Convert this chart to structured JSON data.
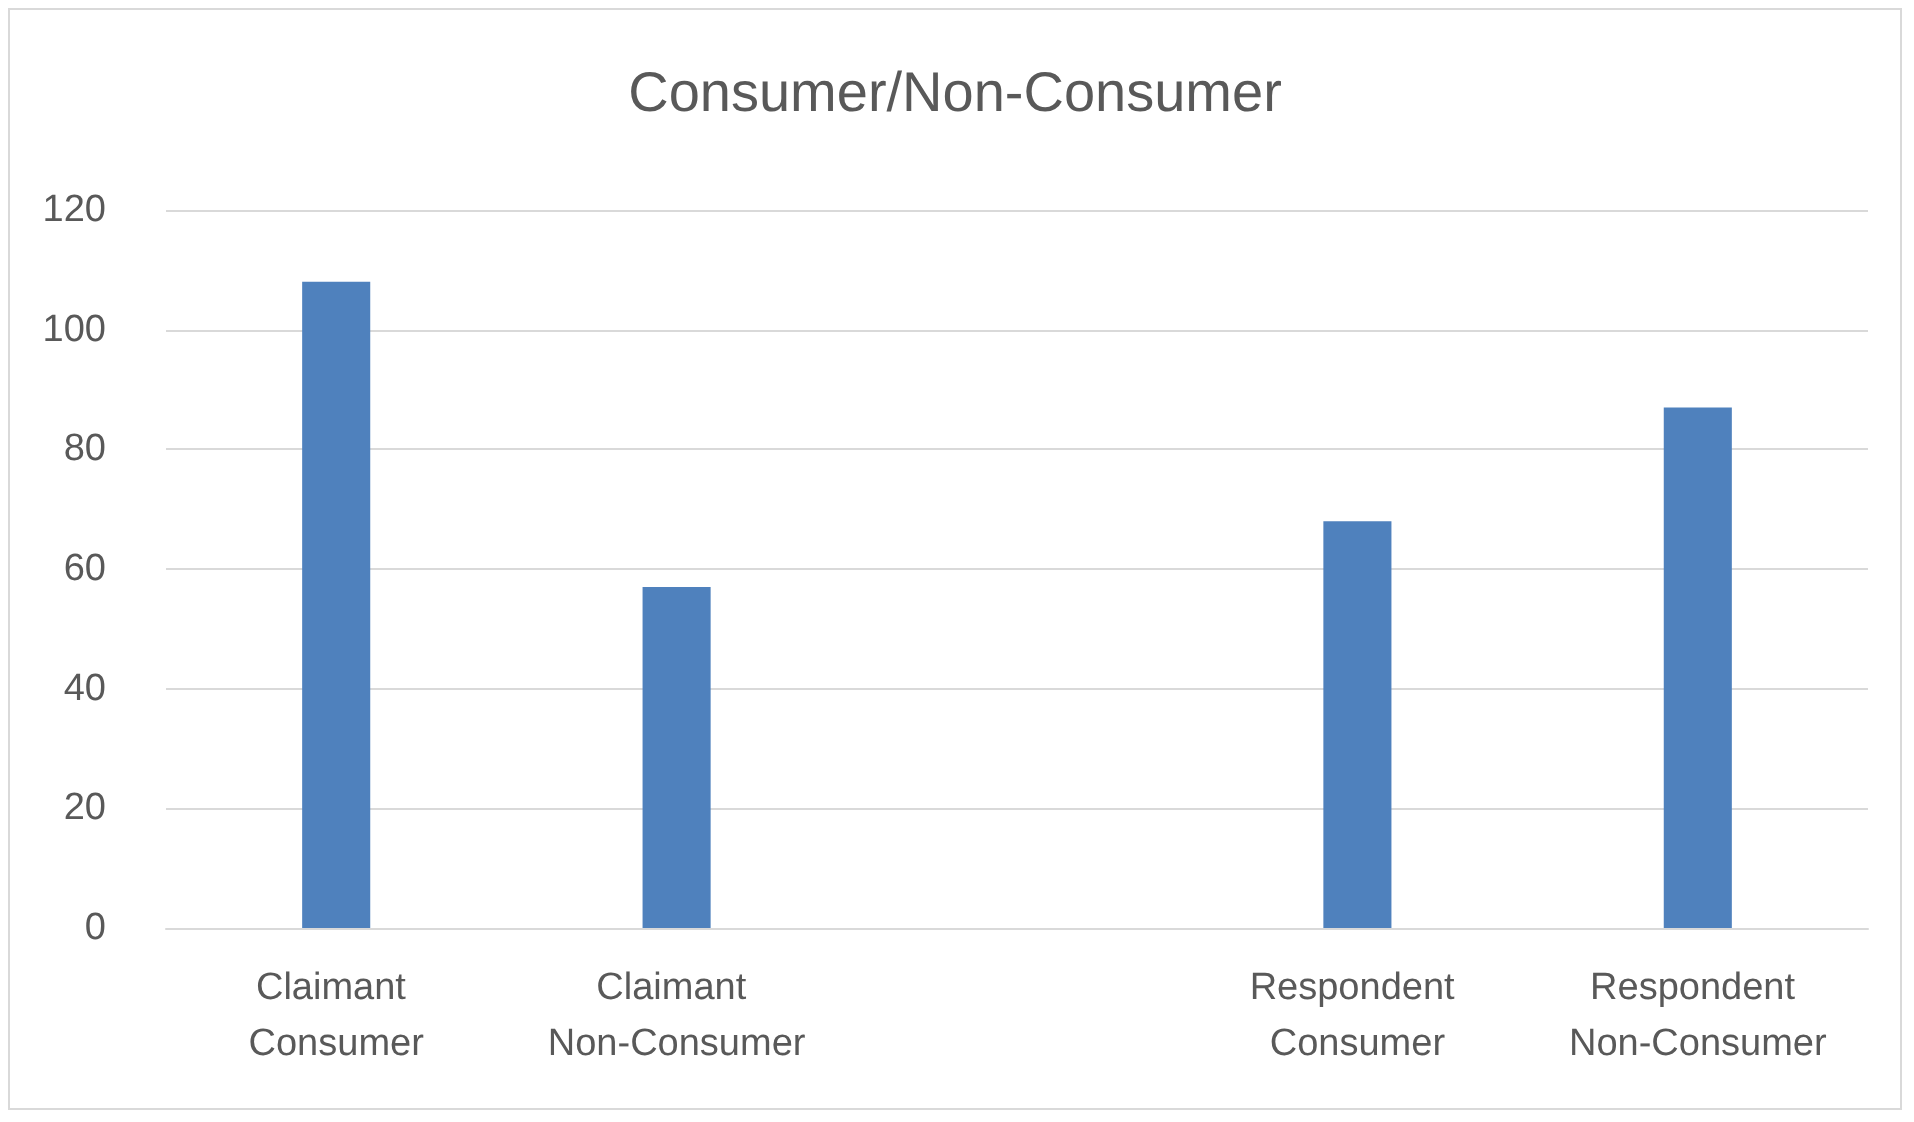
{
  "chart_data": {
    "type": "bar",
    "title": "Consumer/Non-Consumer",
    "categories": [
      "Claimant Consumer",
      "Claimant Non-Consumer",
      null,
      "Respondent Consumer",
      "Respondent Non-Consumer"
    ],
    "values": [
      108,
      57,
      null,
      68,
      87
    ],
    "color": "#4f81bd",
    "ylim": [
      0,
      120
    ],
    "yticks": [
      0,
      20,
      40,
      60,
      80,
      100,
      120
    ],
    "grid": "y"
  }
}
